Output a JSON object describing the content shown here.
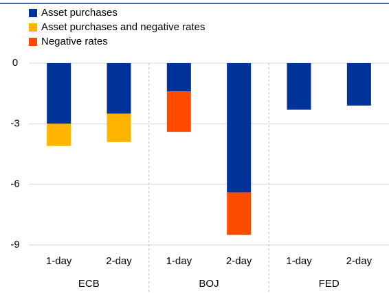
{
  "chart_data": {
    "type": "bar",
    "stacked": true,
    "categories": [
      "1-day",
      "2-day",
      "1-day",
      "2-day",
      "1-day",
      "2-day"
    ],
    "groups": [
      "ECB",
      "BOJ",
      "FED"
    ],
    "series": [
      {
        "name": "Asset purchases",
        "color": "#003399",
        "values": [
          -3.0,
          -2.5,
          -1.4,
          -6.4,
          -2.3,
          -2.1
        ]
      },
      {
        "name": "Asset purchases and negative rates",
        "color": "#ffb400",
        "values": [
          -1.1,
          -1.4,
          null,
          null,
          null,
          null
        ]
      },
      {
        "name": "Negative rates",
        "color": "#ff4b00",
        "values": [
          null,
          null,
          -2.0,
          -2.1,
          null,
          null
        ]
      }
    ],
    "ylim": [
      -9,
      0
    ],
    "yticks": [
      0,
      -3,
      -6,
      -9
    ],
    "grid": true,
    "legend": "top-left"
  }
}
